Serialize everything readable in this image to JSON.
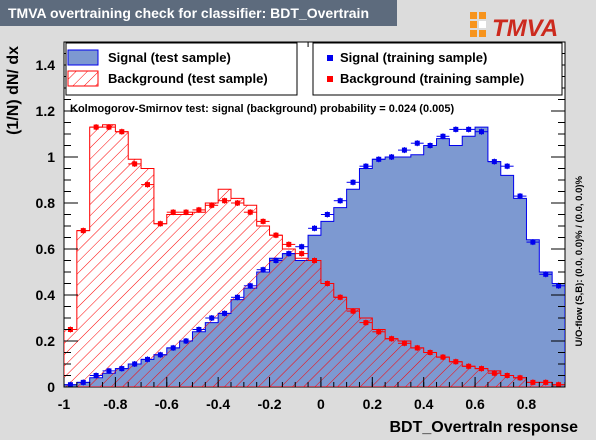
{
  "header": {
    "title": "TMVA overtraining check for classifier: BDT_Overtrain"
  },
  "logo": {
    "text": "TMVA"
  },
  "colors": {
    "signal_fill": "#7d99d1",
    "signal_line": "#0000ee",
    "background_line": "#ff0000",
    "frame_bg": "#ffffff",
    "page_bg": "#dcdcdc"
  },
  "chart_data": {
    "type": "area",
    "xlabel": "BDT_OvertraIn response",
    "ylabel": "(1/N) dN/ dx",
    "xlim": [
      -1.0,
      0.95
    ],
    "ylim": [
      0,
      1.5
    ],
    "x_ticks": [
      "-1",
      "-0.8",
      "-0.6",
      "-0.4",
      "-0.2",
      "0",
      "0.2",
      "0.4",
      "0.6",
      "0.8"
    ],
    "y_ticks": [
      "0",
      "0.2",
      "0.4",
      "0.6",
      "0.8",
      "1",
      "1.2",
      "1.4"
    ],
    "bin_edges_start": -1.0,
    "bin_width": 0.05,
    "ks_text": "Kolmogorov-Smirnov test: signal (background) probability = 0.024 (0.005)",
    "overflow_text": "U/O-flow (S,B): (0.0, 0.0)% / (0.0, 0.0)%",
    "legend": [
      {
        "label": "Signal (test sample)",
        "style": "signal-fill"
      },
      {
        "label": "Signal (training sample)",
        "style": "signal-marker"
      },
      {
        "label": "Background (test sample)",
        "style": "background-hatch"
      },
      {
        "label": "Background (training sample)",
        "style": "background-marker"
      }
    ],
    "series": [
      {
        "name": "Signal (test sample)",
        "values": [
          0.01,
          0.02,
          0.04,
          0.06,
          0.08,
          0.1,
          0.12,
          0.14,
          0.17,
          0.2,
          0.24,
          0.28,
          0.32,
          0.38,
          0.43,
          0.5,
          0.56,
          0.58,
          0.55,
          0.66,
          0.72,
          0.78,
          0.86,
          0.95,
          0.99,
          1.0,
          1.0,
          1.01,
          1.05,
          1.08,
          1.05,
          1.09,
          1.13,
          0.98,
          0.92,
          0.82,
          0.64,
          0.5,
          0.45
        ]
      },
      {
        "name": "Signal (training sample)",
        "values": [
          0.01,
          0.02,
          0.05,
          0.07,
          0.08,
          0.1,
          0.12,
          0.14,
          0.17,
          0.2,
          0.25,
          0.3,
          0.32,
          0.39,
          0.44,
          0.51,
          0.55,
          0.58,
          0.61,
          0.69,
          0.75,
          0.81,
          0.89,
          0.96,
          0.99,
          1.0,
          1.03,
          1.06,
          1.05,
          1.09,
          1.12,
          1.12,
          1.11,
          0.98,
          0.96,
          0.83,
          0.63,
          0.49,
          0.44
        ]
      },
      {
        "name": "Background (test sample)",
        "values": [
          0.25,
          0.68,
          1.13,
          1.14,
          1.11,
          0.99,
          0.95,
          0.71,
          0.75,
          0.75,
          0.76,
          0.8,
          0.86,
          0.82,
          0.79,
          0.7,
          0.66,
          0.6,
          0.56,
          0.55,
          0.45,
          0.39,
          0.34,
          0.3,
          0.25,
          0.21,
          0.2,
          0.17,
          0.15,
          0.13,
          0.11,
          0.09,
          0.08,
          0.07,
          0.05,
          0.04,
          0.02,
          0.02,
          0.01
        ]
      },
      {
        "name": "Background (training sample)",
        "values": [
          0.25,
          0.68,
          1.13,
          1.13,
          1.11,
          0.97,
          0.88,
          0.71,
          0.76,
          0.76,
          0.77,
          0.79,
          0.81,
          0.8,
          0.76,
          0.72,
          0.66,
          0.62,
          0.58,
          0.55,
          0.45,
          0.39,
          0.33,
          0.28,
          0.24,
          0.21,
          0.19,
          0.17,
          0.15,
          0.13,
          0.11,
          0.09,
          0.08,
          0.06,
          0.05,
          0.04,
          0.02,
          0.02,
          0.01
        ]
      }
    ]
  }
}
